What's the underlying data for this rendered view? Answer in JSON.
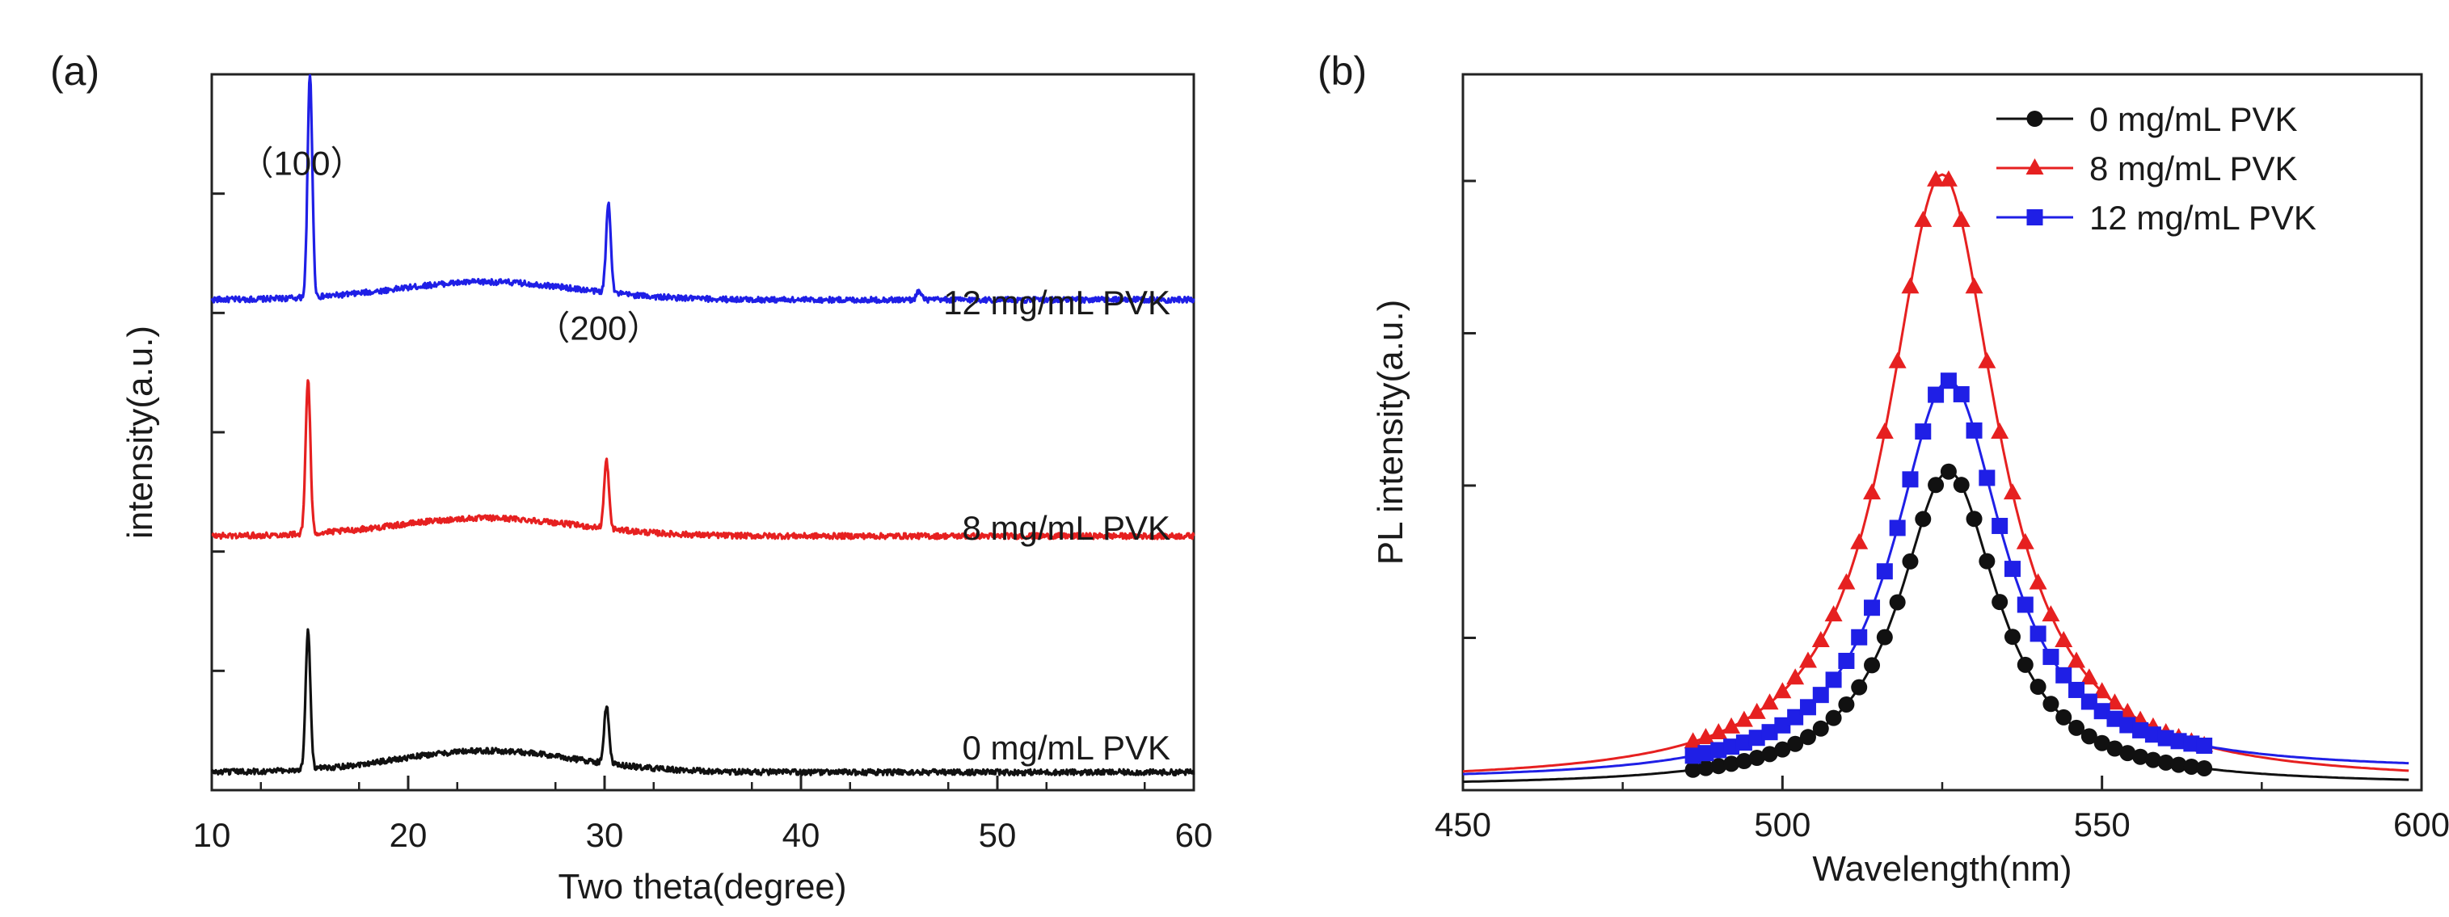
{
  "chart_data": [
    {
      "type": "line",
      "panel_label": "(a)",
      "xlabel": "Two theta(degree)",
      "ylabel": "intensity(a.u.)",
      "xlim": [
        10,
        60
      ],
      "ylim": [
        0,
        100
      ],
      "x_ticks": [
        "10",
        "20",
        "30",
        "40",
        "50",
        "60"
      ],
      "y_ticks_labeled": false,
      "grid": false,
      "legend": "inline labels at right",
      "peak_labels": [
        {
          "text": "（100）",
          "x": 15,
          "y": 91
        },
        {
          "text": "（200）",
          "x": 30.1,
          "y": 68
        }
      ],
      "series": [
        {
          "name": "12 mg/mL PVK",
          "color": "#1f1fe6",
          "baseline": 68.5,
          "peaks": [
            [
              15.0,
              31
            ],
            [
              30.2,
              12.5
            ],
            [
              46.0,
              1.2
            ]
          ],
          "hump": 2.5,
          "noise": 0.4
        },
        {
          "name": "8 mg/mL PVK",
          "color": "#e62020",
          "baseline": 35.5,
          "peaks": [
            [
              14.9,
              21.5
            ],
            [
              30.1,
              9.5
            ]
          ],
          "hump": 2.5,
          "noise": 0.4
        },
        {
          "name": "0 mg/mL PVK",
          "color": "#111111",
          "baseline": 2.5,
          "peaks": [
            [
              14.9,
              19.5
            ],
            [
              30.1,
              8
            ]
          ],
          "hump": 3.0,
          "noise": 0.4
        }
      ]
    },
    {
      "type": "line",
      "panel_label": "(b)",
      "xlabel": "Wavelength(nm)",
      "ylabel": "PL intensity(a.u.)",
      "xlim": [
        450,
        600
      ],
      "ylim": [
        0,
        100
      ],
      "x_ticks": [
        "450",
        "500",
        "550",
        "600"
      ],
      "y_ticks_labeled": false,
      "grid": false,
      "legend": "top-right",
      "series": [
        {
          "name": "0 mg/mL PVK",
          "color": "#111111",
          "marker": "circle",
          "peak_x": 526,
          "amplitude": 44,
          "width": 9.5,
          "offset": 0.5,
          "tail_right": 0.2
        },
        {
          "name": "8 mg/mL PVK",
          "color": "#e62020",
          "marker": "triangle",
          "peak_x": 525,
          "amplitude": 85,
          "width": 10.5,
          "offset": 1.0,
          "tail_right": 0
        },
        {
          "name": "12 mg/mL PVK",
          "color": "#1f1fe6",
          "marker": "square",
          "peak_x": 526,
          "amplitude": 56,
          "width": 10.5,
          "offset": 1.2,
          "tail_right": 1.4
        }
      ]
    }
  ]
}
